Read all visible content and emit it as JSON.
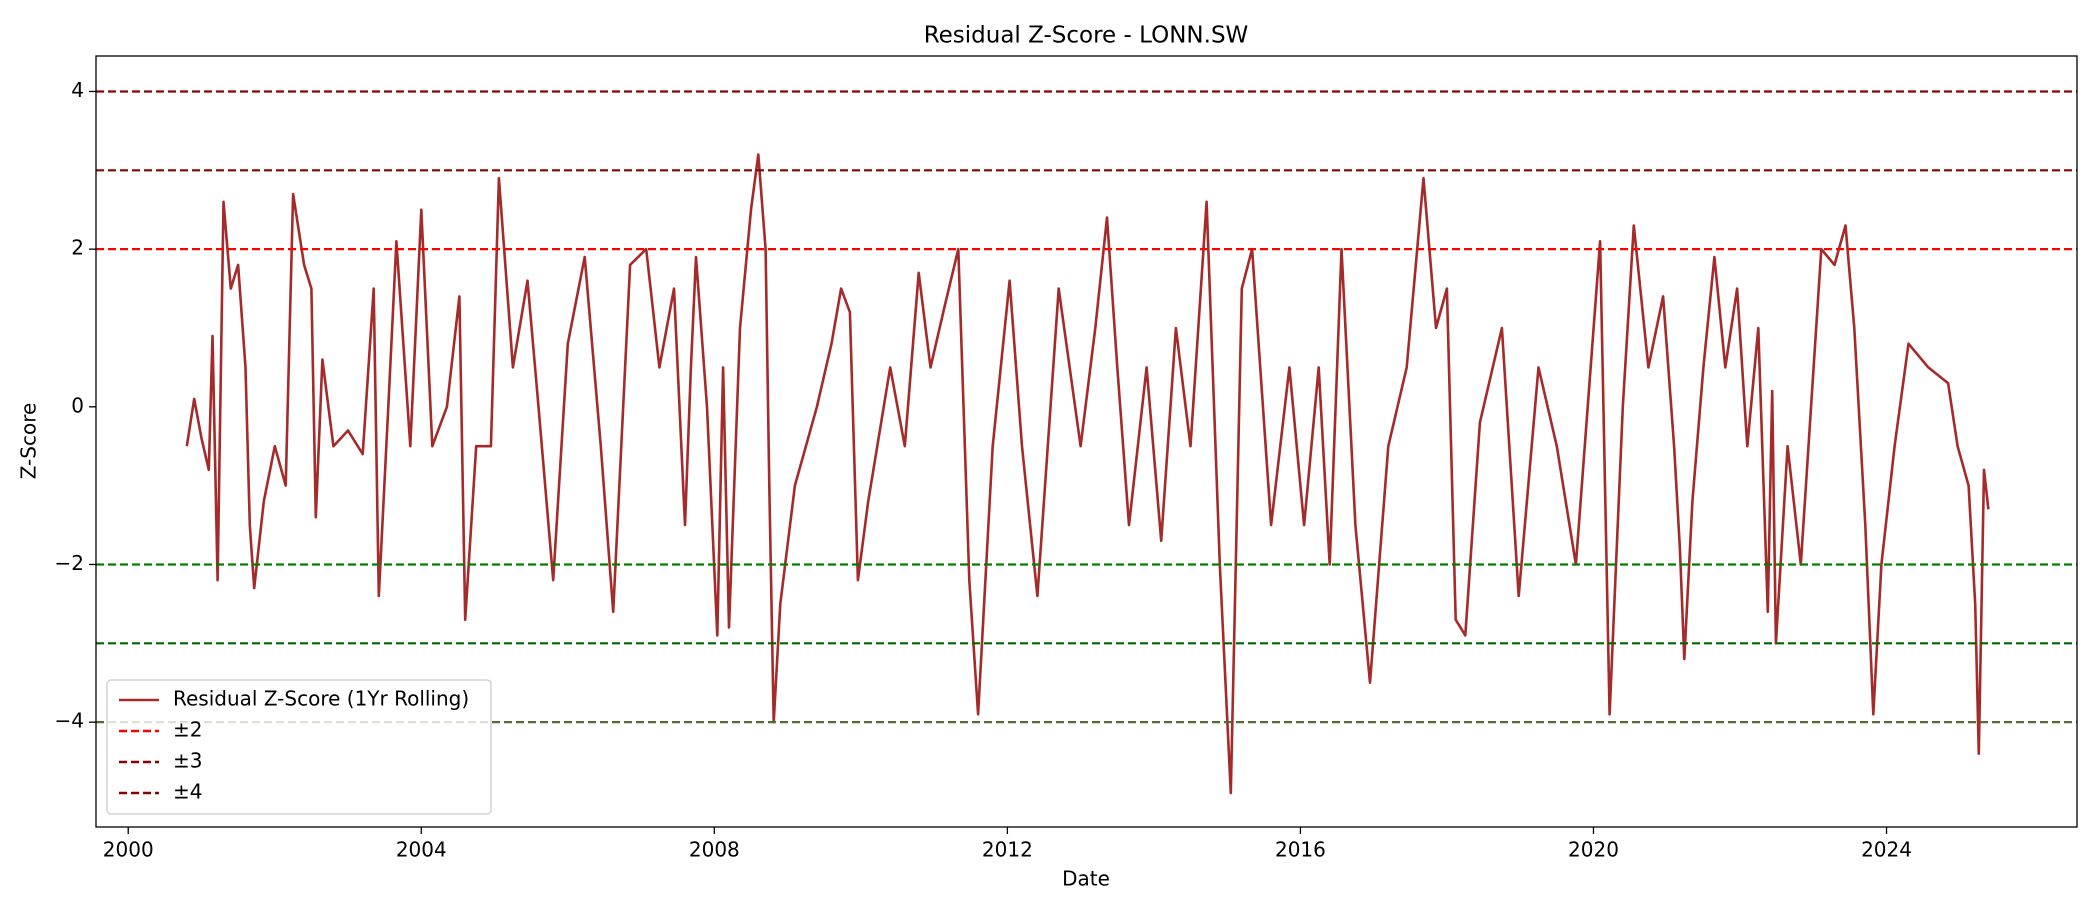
{
  "chart_data": {
    "type": "line",
    "title": "Residual Z-Score - LONN.SW",
    "xlabel": "Date",
    "ylabel": "Z-Score",
    "xlim": [
      1999.56,
      2026.6
    ],
    "ylim": [
      -5.33,
      4.45
    ],
    "xticks": [
      2000,
      2004,
      2008,
      2012,
      2016,
      2020,
      2024
    ],
    "yticks": [
      {
        "value": -4,
        "label": "−4"
      },
      {
        "value": -2,
        "label": "−2"
      },
      0,
      2,
      4
    ],
    "legend": "lower left",
    "x": [
      2000.8,
      2000.9,
      2001.0,
      2001.1,
      2001.15,
      2001.22,
      2001.3,
      2001.4,
      2001.5,
      2001.6,
      2001.66,
      2001.72,
      2001.85,
      2002.0,
      2002.15,
      2002.25,
      2002.4,
      2002.5,
      2002.56,
      2002.65,
      2002.8,
      2003.0,
      2003.2,
      2003.35,
      2003.42,
      2003.55,
      2003.66,
      2003.85,
      2004.0,
      2004.15,
      2004.35,
      2004.52,
      2004.6,
      2004.75,
      2004.95,
      2005.06,
      2005.25,
      2005.45,
      2005.6,
      2005.8,
      2006.0,
      2006.23,
      2006.45,
      2006.62,
      2006.85,
      2007.07,
      2007.25,
      2007.45,
      2007.6,
      2007.68,
      2007.75,
      2007.9,
      2008.04,
      2008.12,
      2008.2,
      2008.35,
      2008.5,
      2008.6,
      2008.7,
      2008.75,
      2008.81,
      2008.9,
      2009.1,
      2009.4,
      2009.6,
      2009.73,
      2009.85,
      2009.96,
      2010.1,
      2010.4,
      2010.6,
      2010.79,
      2010.95,
      2011.15,
      2011.33,
      2011.48,
      2011.6,
      2011.8,
      2012.03,
      2012.2,
      2012.41,
      2012.7,
      2013.0,
      2013.2,
      2013.36,
      2013.5,
      2013.66,
      2013.9,
      2014.1,
      2014.3,
      2014.5,
      2014.72,
      2014.9,
      2015.05,
      2015.2,
      2015.34,
      2015.6,
      2015.85,
      2016.05,
      2016.25,
      2016.4,
      2016.56,
      2016.75,
      2016.95,
      2017.2,
      2017.45,
      2017.68,
      2017.85,
      2018.0,
      2018.12,
      2018.25,
      2018.45,
      2018.75,
      2018.98,
      2019.25,
      2019.5,
      2019.76,
      2020.09,
      2020.22,
      2020.4,
      2020.55,
      2020.75,
      2020.95,
      2021.1,
      2021.18,
      2021.24,
      2021.35,
      2021.5,
      2021.65,
      2021.8,
      2021.96,
      2022.1,
      2022.25,
      2022.38,
      2022.44,
      2022.49,
      2022.65,
      2022.83,
      2023.11,
      2023.29,
      2023.44,
      2023.56,
      2023.71,
      2023.82,
      2023.93,
      2024.11,
      2024.3,
      2024.57,
      2024.84,
      2024.97,
      2025.12,
      2025.21,
      2025.26,
      2025.33,
      2025.39
    ],
    "series": [
      {
        "name": "Residual Z-Score (1Yr Rolling)",
        "color": "#a52a2a",
        "values": [
          -0.5,
          0.1,
          -0.4,
          -0.8,
          0.9,
          -2.2,
          2.6,
          1.5,
          1.8,
          0.5,
          -1.5,
          -2.3,
          -1.2,
          -0.5,
          -1.0,
          2.7,
          1.8,
          1.5,
          -1.4,
          0.6,
          -0.5,
          -0.3,
          -0.6,
          1.5,
          -2.4,
          0.0,
          2.1,
          -0.5,
          2.5,
          -0.5,
          0.0,
          1.4,
          -2.7,
          -0.5,
          -0.5,
          2.9,
          0.5,
          1.6,
          0.0,
          -2.2,
          0.8,
          1.9,
          -0.5,
          -2.6,
          1.8,
          2.0,
          0.5,
          1.5,
          -1.5,
          0.5,
          1.9,
          0.0,
          -2.9,
          0.5,
          -2.8,
          1.0,
          2.5,
          3.2,
          2.0,
          -1.0,
          -4.0,
          -2.5,
          -1.0,
          0.0,
          0.8,
          1.5,
          1.2,
          -2.2,
          -1.2,
          0.5,
          -0.5,
          1.7,
          0.5,
          1.3,
          2.0,
          -2.2,
          -3.9,
          -0.5,
          1.6,
          -0.5,
          -2.4,
          1.5,
          -0.5,
          1.0,
          2.4,
          0.5,
          -1.5,
          0.5,
          -1.7,
          1.0,
          -0.5,
          2.6,
          -2.0,
          -4.9,
          1.5,
          2.0,
          -1.5,
          0.5,
          -1.5,
          0.5,
          -2.0,
          2.0,
          -1.5,
          -3.5,
          -0.5,
          0.5,
          2.9,
          1.0,
          1.5,
          -2.7,
          -2.9,
          -0.2,
          1.0,
          -2.4,
          0.5,
          -0.5,
          -2.0,
          2.1,
          -3.9,
          0.0,
          2.3,
          0.5,
          1.4,
          -0.5,
          -1.8,
          -3.2,
          -1.2,
          0.5,
          1.9,
          0.5,
          1.5,
          -0.5,
          1.0,
          -2.6,
          0.2,
          -3.0,
          -0.5,
          -2.0,
          2.0,
          1.8,
          2.3,
          1.0,
          -1.5,
          -3.9,
          -2.0,
          -0.5,
          0.8,
          0.5,
          0.3,
          -0.5,
          -1.0,
          -2.5,
          -4.4,
          -0.8,
          -1.3
        ]
      }
    ],
    "reference_lines": [
      {
        "name": "±2",
        "values": [
          2,
          -2
        ],
        "colors": [
          "red",
          "green"
        ]
      },
      {
        "name": "±3",
        "values": [
          3,
          -3
        ],
        "colors": [
          "#8b0000",
          "#006400"
        ]
      },
      {
        "name": "±4",
        "values": [
          4,
          -4
        ],
        "colors": [
          "#8b0000",
          "#556b2f"
        ]
      }
    ]
  }
}
